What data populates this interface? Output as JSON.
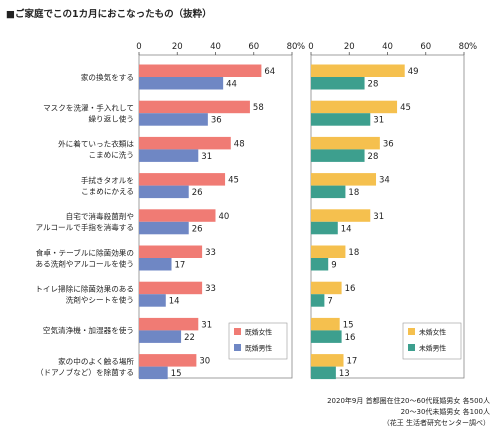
{
  "title": "■ご家庭でこの1カ月におこなったもの（抜粋）",
  "notes": [
    "2020年9月 首都圏在住20～60代既婚男女 各500人",
    "20～30代未婚男女 各100人",
    "（花王 生活者研究センター調べ）"
  ],
  "chart_data": [
    {
      "type": "bar",
      "orientation": "horizontal",
      "xlim": [
        0,
        80
      ],
      "ticks": [
        0,
        20,
        40,
        60,
        80
      ],
      "tick_unit": "%",
      "categories": [
        [
          "家の換気をする"
        ],
        [
          "マスクを洗濯・手入れして",
          "繰り返し使う"
        ],
        [
          "外に着ていった衣類は",
          "こまめに洗う"
        ],
        [
          "手拭きタオルを",
          "こまめにかえる"
        ],
        [
          "自宅で消毒殺菌剤や",
          "アルコールで手指を消毒する"
        ],
        [
          "食卓・テーブルに除菌効果の",
          "ある洗剤やアルコールを使う"
        ],
        [
          "トイレ掃除に除菌効果のある",
          "洗剤やシートを使う"
        ],
        [
          "空気清浄機・加湿器を使う"
        ],
        [
          "家の中のよく触る場所",
          "（ドアノブなど）を除菌する"
        ]
      ],
      "series": [
        {
          "name": "既婚女性",
          "color": "#f07b74",
          "values": [
            64,
            58,
            48,
            45,
            40,
            33,
            33,
            31,
            30
          ]
        },
        {
          "name": "既婚男性",
          "color": "#6f87c4",
          "values": [
            44,
            36,
            31,
            26,
            26,
            17,
            14,
            22,
            15
          ]
        }
      ]
    },
    {
      "type": "bar",
      "orientation": "horizontal",
      "xlim": [
        0,
        80
      ],
      "ticks": [
        0,
        20,
        40,
        60,
        80
      ],
      "tick_unit": "%",
      "series": [
        {
          "name": "未婚女性",
          "color": "#f5c04e",
          "values": [
            49,
            45,
            36,
            34,
            31,
            18,
            16,
            15,
            17
          ]
        },
        {
          "name": "未婚男性",
          "color": "#3d9f8e",
          "values": [
            28,
            31,
            28,
            18,
            14,
            9,
            7,
            16,
            13
          ]
        }
      ]
    }
  ]
}
